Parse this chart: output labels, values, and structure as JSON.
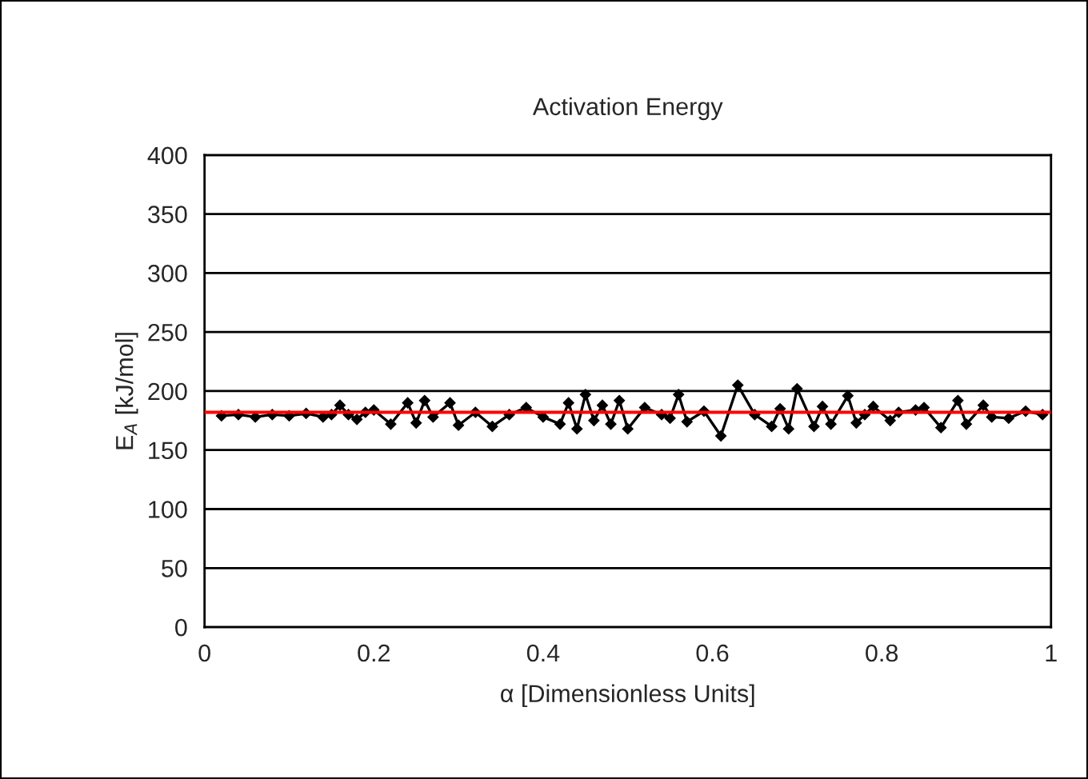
{
  "chart_data": {
    "type": "line",
    "title": "Activation Energy",
    "xlabel": "α [Dimensionless Units]",
    "ylabel": "E$_{A}$ [kJ/mol]",
    "series": [
      {
        "color": "#000000",
        "x": [
          0.02,
          0.04,
          0.06,
          0.08,
          0.1,
          0.12,
          0.14,
          0.15,
          0.16,
          0.17,
          0.18,
          0.19,
          0.2,
          0.22,
          0.24,
          0.25,
          0.26,
          0.27,
          0.29,
          0.3,
          0.32,
          0.34,
          0.36,
          0.38,
          0.4,
          0.42,
          0.43,
          0.44,
          0.45,
          0.46,
          0.47,
          0.48,
          0.49,
          0.5,
          0.52,
          0.54,
          0.55,
          0.56,
          0.57,
          0.59,
          0.61,
          0.63,
          0.65,
          0.67,
          0.68,
          0.69,
          0.7,
          0.72,
          0.73,
          0.74,
          0.76,
          0.77,
          0.78,
          0.79,
          0.81,
          0.82,
          0.84,
          0.85,
          0.87,
          0.89,
          0.9,
          0.92,
          0.93,
          0.95,
          0.97,
          0.99
        ],
        "values": [
          179,
          180,
          178,
          180,
          179,
          181,
          178,
          180,
          188,
          180,
          176,
          182,
          184,
          172,
          190,
          173,
          192,
          178,
          190,
          171,
          182,
          170,
          180,
          186,
          178,
          172,
          190,
          168,
          197,
          175,
          188,
          172,
          192,
          168,
          186,
          180,
          177,
          197,
          174,
          183,
          162,
          205,
          180,
          170,
          185,
          168,
          202,
          170,
          187,
          172,
          196,
          173,
          180,
          187,
          175,
          182,
          184,
          186,
          169,
          192,
          172,
          188,
          178,
          177,
          183,
          180
        ]
      }
    ],
    "xlim": [
      0,
      1
    ],
    "xticks": [
      0,
      0.2,
      0.4,
      0.6,
      0.8,
      1
    ],
    "ylim": [
      0,
      400
    ],
    "yticks": [
      0,
      50,
      100,
      150,
      200,
      250,
      300,
      350,
      400
    ],
    "grid": "y",
    "marker": "diamond",
    "line_style": "solid",
    "ref_lines": [
      {
        "axis": "y",
        "value": 182,
        "color": "#ff0000",
        "line_style": "solid"
      }
    ]
  }
}
